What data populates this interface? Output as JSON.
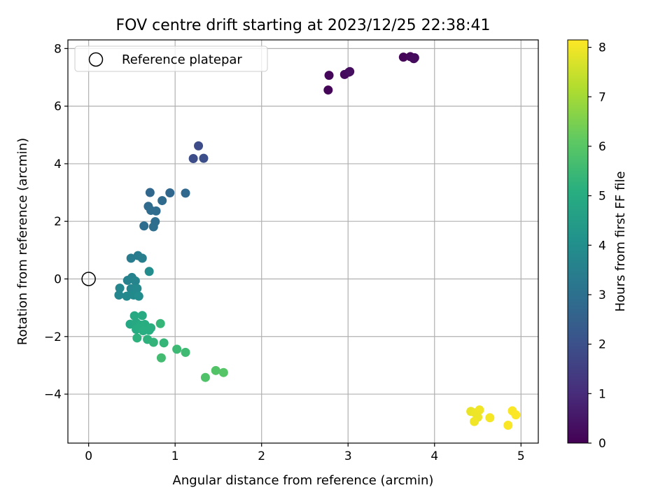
{
  "chart_data": {
    "type": "scatter",
    "title": "FOV centre drift starting at 2023/12/25 22:38:41",
    "xlabel": "Angular distance from reference (arcmin)",
    "ylabel": "Rotation from reference (arcmin)",
    "xlim": [
      -0.24,
      5.2
    ],
    "ylim": [
      -5.7,
      8.3
    ],
    "xticks": [
      "0",
      "1",
      "2",
      "3",
      "4",
      "5"
    ],
    "yticks": [
      "−4",
      "−2",
      "0",
      "2",
      "4",
      "6",
      "8"
    ],
    "grid": true,
    "legend": {
      "position": "top-left",
      "entries": [
        "Reference platepar"
      ]
    },
    "reference_point": {
      "x": 0,
      "y": 0
    },
    "colorbar": {
      "label": "Hours from first FF file",
      "range": [
        0,
        8.15
      ],
      "ticks": [
        "0",
        "1",
        "2",
        "3",
        "4",
        "5",
        "6",
        "7",
        "8"
      ],
      "colormap": "viridis"
    },
    "points": [
      {
        "x": 2.77,
        "y": 6.56,
        "c": 0.1
      },
      {
        "x": 2.78,
        "y": 7.07,
        "c": 0.15
      },
      {
        "x": 2.96,
        "y": 7.1,
        "c": 0.2
      },
      {
        "x": 3.01,
        "y": 7.18,
        "c": 0.25
      },
      {
        "x": 3.02,
        "y": 7.2,
        "c": 0.3
      },
      {
        "x": 3.64,
        "y": 7.7,
        "c": 0.1
      },
      {
        "x": 3.72,
        "y": 7.72,
        "c": 0.15
      },
      {
        "x": 3.76,
        "y": 7.65,
        "c": 0.2
      },
      {
        "x": 3.77,
        "y": 7.68,
        "c": 0.25
      },
      {
        "x": 1.21,
        "y": 4.18,
        "c": 1.9
      },
      {
        "x": 1.27,
        "y": 4.62,
        "c": 1.85
      },
      {
        "x": 1.33,
        "y": 4.19,
        "c": 1.95
      },
      {
        "x": 0.71,
        "y": 3.0,
        "c": 2.7
      },
      {
        "x": 0.94,
        "y": 2.99,
        "c": 2.7
      },
      {
        "x": 1.12,
        "y": 2.98,
        "c": 2.75
      },
      {
        "x": 0.85,
        "y": 2.72,
        "c": 2.8
      },
      {
        "x": 0.69,
        "y": 2.52,
        "c": 2.8
      },
      {
        "x": 0.72,
        "y": 2.38,
        "c": 2.85
      },
      {
        "x": 0.78,
        "y": 2.36,
        "c": 2.85
      },
      {
        "x": 0.77,
        "y": 1.99,
        "c": 2.9
      },
      {
        "x": 0.64,
        "y": 1.84,
        "c": 2.9
      },
      {
        "x": 0.75,
        "y": 1.81,
        "c": 2.95
      },
      {
        "x": 0.49,
        "y": 0.72,
        "c": 3.4
      },
      {
        "x": 0.57,
        "y": 0.81,
        "c": 3.4
      },
      {
        "x": 0.62,
        "y": 0.72,
        "c": 3.45
      },
      {
        "x": 0.7,
        "y": 0.26,
        "c": 3.9
      },
      {
        "x": 0.45,
        "y": -0.05,
        "c": 3.55
      },
      {
        "x": 0.5,
        "y": 0.05,
        "c": 3.6
      },
      {
        "x": 0.54,
        "y": -0.07,
        "c": 3.65
      },
      {
        "x": 0.36,
        "y": -0.32,
        "c": 3.7
      },
      {
        "x": 0.49,
        "y": -0.34,
        "c": 3.75
      },
      {
        "x": 0.56,
        "y": -0.33,
        "c": 3.8
      },
      {
        "x": 0.35,
        "y": -0.56,
        "c": 3.75
      },
      {
        "x": 0.44,
        "y": -0.6,
        "c": 3.8
      },
      {
        "x": 0.52,
        "y": -0.56,
        "c": 3.85
      },
      {
        "x": 0.58,
        "y": -0.6,
        "c": 3.9
      },
      {
        "x": 0.53,
        "y": -1.28,
        "c": 4.9
      },
      {
        "x": 0.62,
        "y": -1.27,
        "c": 4.95
      },
      {
        "x": 0.48,
        "y": -1.57,
        "c": 4.85
      },
      {
        "x": 0.55,
        "y": -1.52,
        "c": 4.9
      },
      {
        "x": 0.6,
        "y": -1.6,
        "c": 5.0
      },
      {
        "x": 0.65,
        "y": -1.58,
        "c": 5.05
      },
      {
        "x": 0.72,
        "y": -1.7,
        "c": 5.15
      },
      {
        "x": 0.55,
        "y": -1.75,
        "c": 5.0
      },
      {
        "x": 0.63,
        "y": -1.8,
        "c": 5.1
      },
      {
        "x": 0.7,
        "y": -1.78,
        "c": 5.1
      },
      {
        "x": 0.83,
        "y": -1.55,
        "c": 5.35
      },
      {
        "x": 0.56,
        "y": -2.05,
        "c": 5.2
      },
      {
        "x": 0.68,
        "y": -2.1,
        "c": 5.2
      },
      {
        "x": 0.75,
        "y": -2.2,
        "c": 5.3
      },
      {
        "x": 0.87,
        "y": -2.22,
        "c": 5.35
      },
      {
        "x": 1.02,
        "y": -2.44,
        "c": 5.5
      },
      {
        "x": 1.12,
        "y": -2.55,
        "c": 5.55
      },
      {
        "x": 0.84,
        "y": -2.74,
        "c": 5.6
      },
      {
        "x": 1.35,
        "y": -3.42,
        "c": 5.85
      },
      {
        "x": 1.47,
        "y": -3.18,
        "c": 5.9
      },
      {
        "x": 1.56,
        "y": -3.25,
        "c": 5.95
      },
      {
        "x": 4.42,
        "y": -4.6,
        "c": 7.9
      },
      {
        "x": 4.47,
        "y": -4.65,
        "c": 7.95
      },
      {
        "x": 4.52,
        "y": -4.55,
        "c": 8.0
      },
      {
        "x": 4.5,
        "y": -4.8,
        "c": 7.95
      },
      {
        "x": 4.46,
        "y": -4.95,
        "c": 8.0
      },
      {
        "x": 4.64,
        "y": -4.82,
        "c": 8.05
      },
      {
        "x": 4.85,
        "y": -5.08,
        "c": 8.1
      },
      {
        "x": 4.9,
        "y": -4.58,
        "c": 8.1
      },
      {
        "x": 4.94,
        "y": -4.72,
        "c": 8.12
      }
    ]
  }
}
